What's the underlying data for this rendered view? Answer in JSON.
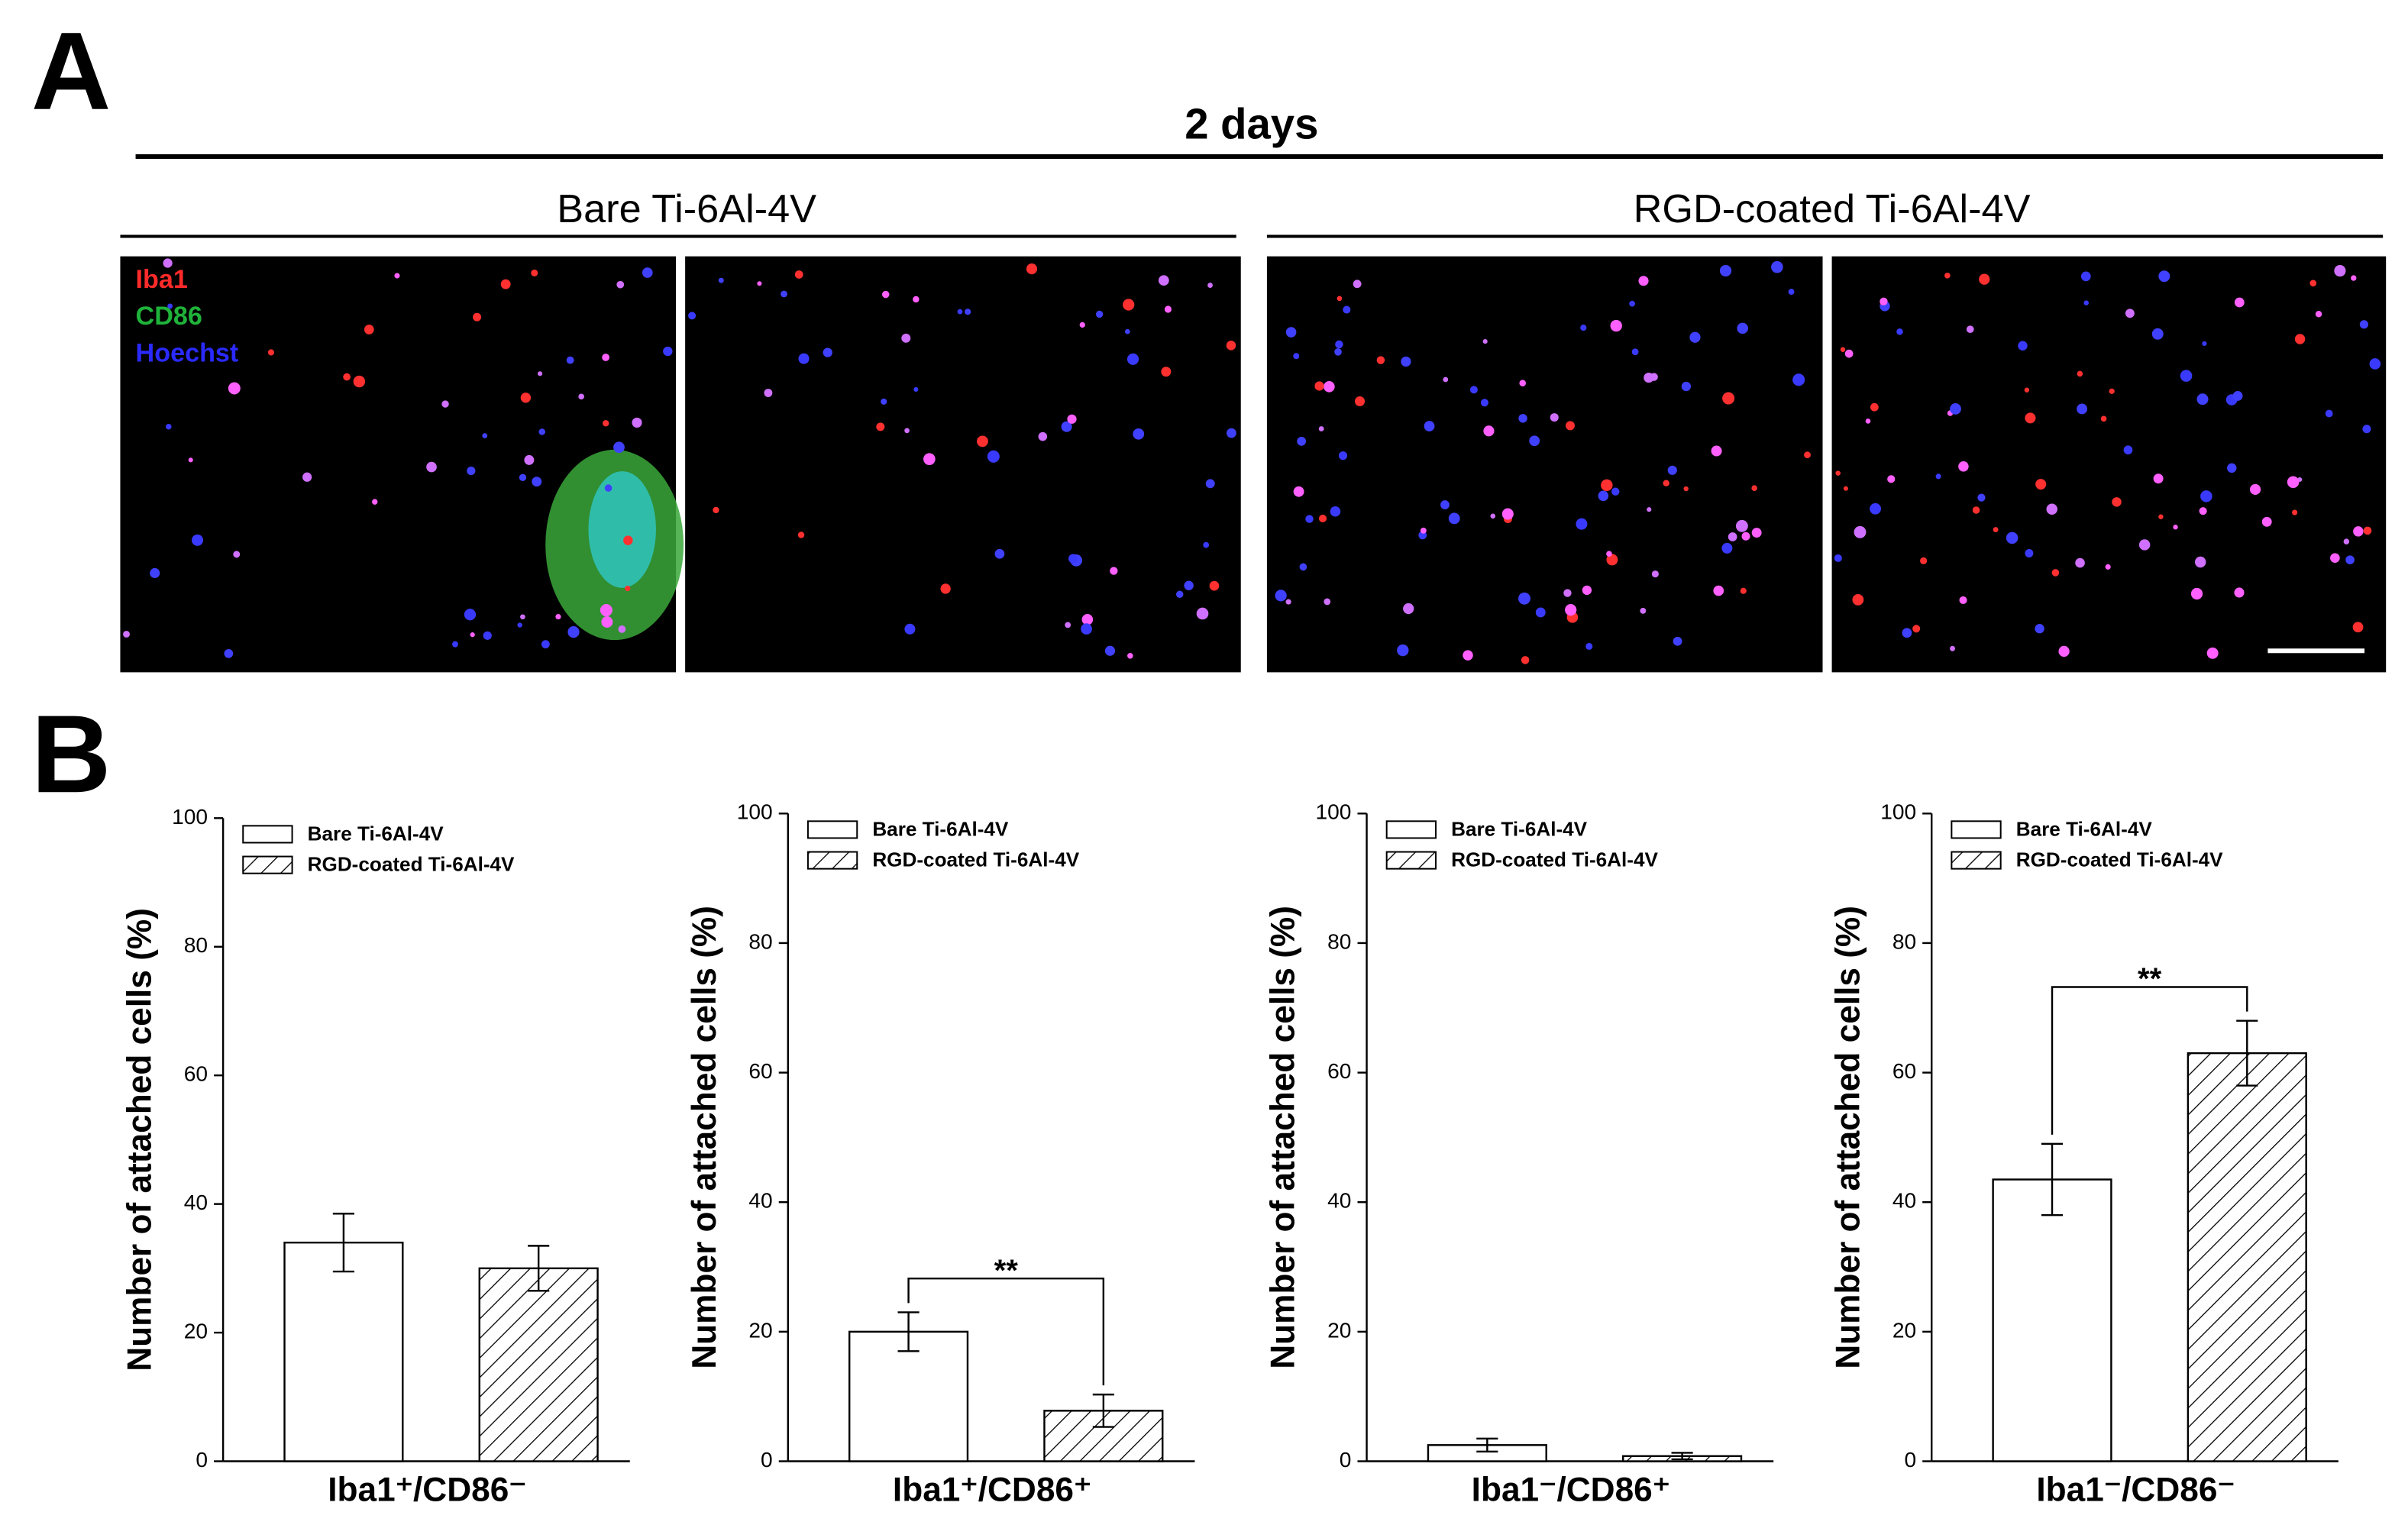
{
  "panel_a": {
    "label": "A",
    "title": "2 days",
    "groups": [
      "Bare Ti-6Al-4V",
      "RGD-coated Ti-6Al-4V"
    ],
    "channels": [
      {
        "name": "Iba1",
        "color": "#ff2a2a"
      },
      {
        "name": "CD86",
        "color": "#1fb33a"
      },
      {
        "name": "Hoechst",
        "color": "#2a2aff"
      }
    ]
  },
  "panel_b_label": "B",
  "chart_data": [
    {
      "type": "bar",
      "y_label": "Number of attached cells (%)",
      "categories": [
        "Iba1⁺/CD86⁻"
      ],
      "ylim": [
        0,
        100
      ],
      "yticks": [
        0,
        20,
        40,
        60,
        80,
        100
      ],
      "series": [
        {
          "name": "Bare Ti-6Al-4V",
          "color": "#ffffff",
          "hatch": false,
          "values": [
            34
          ],
          "errors": [
            4.5
          ]
        },
        {
          "name": "RGD-coated Ti-6Al-4V",
          "color": "#ffffff",
          "hatch": true,
          "values": [
            30
          ],
          "errors": [
            3.5
          ]
        }
      ]
    },
    {
      "type": "bar",
      "y_label": "Number of attached cells (%)",
      "categories": [
        "Iba1⁺/CD86⁺"
      ],
      "ylim": [
        0,
        100
      ],
      "yticks": [
        0,
        20,
        40,
        60,
        80,
        100
      ],
      "significance": "**",
      "series": [
        {
          "name": "Bare Ti-6Al-4V",
          "color": "#ffffff",
          "hatch": false,
          "values": [
            20
          ],
          "errors": [
            3
          ]
        },
        {
          "name": "RGD-coated Ti-6Al-4V",
          "color": "#ffffff",
          "hatch": true,
          "values": [
            7.8
          ],
          "errors": [
            2.5
          ]
        }
      ]
    },
    {
      "type": "bar",
      "y_label": "Number of attached cells (%)",
      "categories": [
        "Iba1⁻/CD86⁺"
      ],
      "ylim": [
        0,
        100
      ],
      "yticks": [
        0,
        20,
        40,
        60,
        80,
        100
      ],
      "series": [
        {
          "name": "Bare Ti-6Al-4V",
          "color": "#ffffff",
          "hatch": false,
          "values": [
            2.5
          ],
          "errors": [
            1
          ]
        },
        {
          "name": "RGD-coated Ti-6Al-4V",
          "color": "#ffffff",
          "hatch": true,
          "values": [
            0.8
          ],
          "errors": [
            0.5
          ]
        }
      ]
    },
    {
      "type": "bar",
      "y_label": "Number of attached cells (%)",
      "categories": [
        "Iba1⁻/CD86⁻"
      ],
      "ylim": [
        0,
        100
      ],
      "yticks": [
        0,
        20,
        40,
        60,
        80,
        100
      ],
      "significance": "**",
      "series": [
        {
          "name": "Bare Ti-6Al-4V",
          "color": "#ffffff",
          "hatch": false,
          "values": [
            43.5
          ],
          "errors": [
            5.5
          ]
        },
        {
          "name": "RGD-coated Ti-6Al-4V",
          "color": "#ffffff",
          "hatch": true,
          "values": [
            63
          ],
          "errors": [
            5
          ]
        }
      ]
    }
  ]
}
